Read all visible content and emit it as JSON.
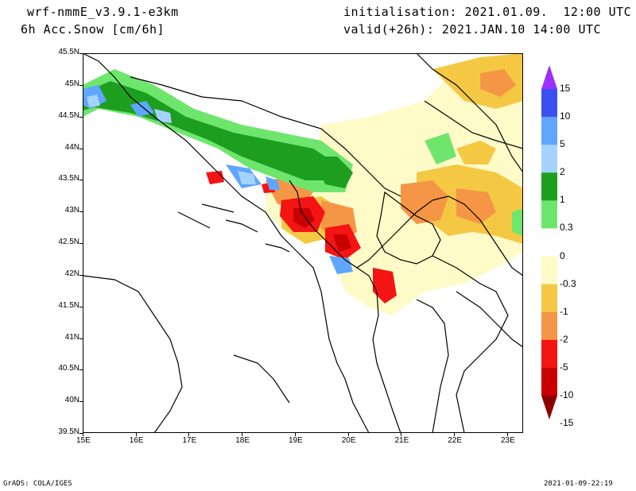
{
  "header": {
    "model": "wrf-nmmE_v3.9.1-e3km",
    "field": "6h Acc.Snow [cm/6h]",
    "initialisation": "initialisation: 2021.01.09.  12:00 UTC",
    "valid": "valid(+26h): 2021.JAN.10 14:00 UTC"
  },
  "footer": {
    "left": "GrADS: COLA/IGES",
    "right": "2021-01-09-22:19"
  },
  "axes": {
    "lon_ticks": [
      "15E",
      "16E",
      "17E",
      "18E",
      "19E",
      "20E",
      "21E",
      "22E",
      "23E"
    ],
    "lat_ticks": [
      "45.5N",
      "45N",
      "44.5N",
      "44N",
      "43.5N",
      "43N",
      "42.5N",
      "42N",
      "41.5N",
      "41N",
      "40.5N",
      "40N",
      "39.5N"
    ],
    "lon_range": [
      15.0,
      23.3
    ],
    "lat_range": [
      39.5,
      45.5
    ]
  },
  "colorbar": {
    "labels": [
      "15",
      "10",
      "5",
      "2",
      "1",
      "0.3",
      "0",
      "-0.3",
      "-1",
      "-2",
      "-5",
      "-10",
      "-15"
    ],
    "colors": [
      "#9b30ff",
      "#3c50f0",
      "#5ea6ff",
      "#a6d2ff",
      "#1e9e1e",
      "#6ee66e",
      "#ffffff",
      "#fffbc8",
      "#f5c844",
      "#f59646",
      "#f51414",
      "#c80000",
      "#8c0000"
    ]
  }
}
